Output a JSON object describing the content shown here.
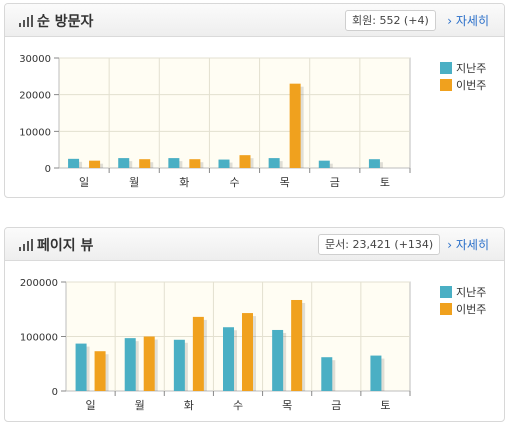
{
  "colors": {
    "last_week": "#4aafc4",
    "this_week": "#f0a11e",
    "plot_bg": "#fffdf3"
  },
  "visitors": {
    "title": "순 방문자",
    "stat": "회원: 552 (+4)",
    "detail_link": "› 자세히",
    "icon": "bar-chart-icon"
  },
  "pageviews": {
    "title": "페이지 뷰",
    "stat": "문서: 23,421 (+134)",
    "detail_link": "› 자세히",
    "icon": "bar-chart-icon"
  },
  "chart_data": [
    {
      "type": "bar",
      "title": "순 방문자",
      "categories": [
        "일",
        "월",
        "화",
        "수",
        "목",
        "금",
        "토"
      ],
      "series": [
        {
          "name": "지난주",
          "values": [
            2500,
            2700,
            2700,
            2300,
            2700,
            2000,
            2400
          ]
        },
        {
          "name": "이번주",
          "values": [
            2000,
            2400,
            2400,
            3500,
            23000,
            null,
            null
          ]
        }
      ],
      "ylim": [
        0,
        30000
      ],
      "yticks": [
        0,
        10000,
        20000,
        30000
      ],
      "ytick_labels": [
        "0",
        "10000",
        "20000",
        "30000"
      ],
      "grid": true,
      "legend": "right"
    },
    {
      "type": "bar",
      "title": "페이지 뷰",
      "categories": [
        "일",
        "월",
        "화",
        "수",
        "목",
        "금",
        "토"
      ],
      "series": [
        {
          "name": "지난주",
          "values": [
            87000,
            97000,
            94000,
            117000,
            112000,
            62000,
            65000
          ]
        },
        {
          "name": "이번주",
          "values": [
            73000,
            100000,
            136000,
            143000,
            167000,
            null,
            null
          ]
        }
      ],
      "ylim": [
        0,
        200000
      ],
      "yticks": [
        0,
        100000,
        200000
      ],
      "ytick_labels": [
        "0",
        "100000",
        "200000"
      ],
      "grid": true,
      "legend": "right"
    }
  ]
}
